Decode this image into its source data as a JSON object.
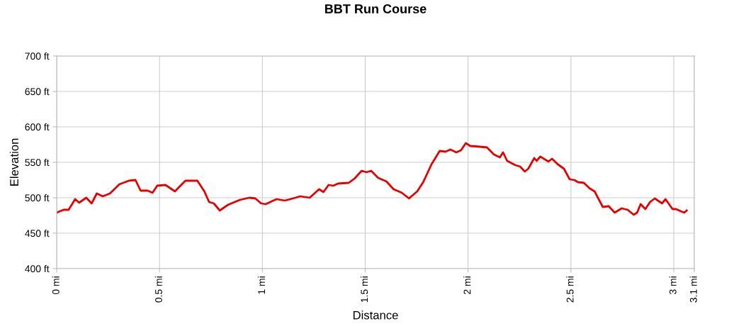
{
  "chart_data": {
    "type": "line",
    "title": "BBT Run Course",
    "xlabel": "Distance",
    "ylabel": "Elevation",
    "xlim": [
      0,
      3.1
    ],
    "ylim": [
      400,
      700
    ],
    "xticks": [
      {
        "value": 0,
        "label": "0 mi"
      },
      {
        "value": 0.5,
        "label": "0.5 mi"
      },
      {
        "value": 1,
        "label": "1 mi"
      },
      {
        "value": 1.5,
        "label": "1.5 mi"
      },
      {
        "value": 2,
        "label": "2 mi"
      },
      {
        "value": 2.5,
        "label": "2.5 mi"
      },
      {
        "value": 3,
        "label": "3 mi"
      },
      {
        "value": 3.1,
        "label": "3.1 mi"
      }
    ],
    "yticks": [
      {
        "value": 400,
        "label": "400 ft"
      },
      {
        "value": 450,
        "label": "450 ft"
      },
      {
        "value": 500,
        "label": "500 ft"
      },
      {
        "value": 550,
        "label": "550 ft"
      },
      {
        "value": 600,
        "label": "600 ft"
      },
      {
        "value": 650,
        "label": "650 ft"
      },
      {
        "value": 700,
        "label": "700 ft"
      }
    ],
    "grid": true,
    "legend": false,
    "marker": "none",
    "line_style": "solid",
    "series": [
      {
        "color": "#e60000",
        "x": [
          0,
          0.034,
          0.058,
          0.09,
          0.109,
          0.144,
          0.17,
          0.195,
          0.224,
          0.259,
          0.305,
          0.351,
          0.383,
          0.408,
          0.442,
          0.466,
          0.489,
          0.529,
          0.575,
          0.626,
          0.684,
          0.718,
          0.741,
          0.764,
          0.793,
          0.833,
          0.891,
          0.937,
          0.966,
          0.994,
          1.017,
          1.046,
          1.069,
          1.109,
          1.149,
          1.184,
          1.23,
          1.276,
          1.297,
          1.322,
          1.345,
          1.368,
          1.42,
          1.448,
          1.483,
          1.506,
          1.529,
          1.563,
          1.603,
          1.638,
          1.678,
          1.713,
          1.753,
          1.782,
          1.822,
          1.862,
          1.891,
          1.914,
          1.943,
          1.966,
          1.989,
          2.011,
          2.057,
          2.092,
          2.126,
          2.155,
          2.17,
          2.19,
          2.23,
          2.253,
          2.276,
          2.293,
          2.322,
          2.333,
          2.351,
          2.391,
          2.408,
          2.437,
          2.466,
          2.494,
          2.517,
          2.534,
          2.563,
          2.592,
          2.615,
          2.655,
          2.684,
          2.713,
          2.747,
          2.776,
          2.805,
          2.822,
          2.839,
          2.862,
          2.885,
          2.908,
          2.943,
          2.96,
          2.994,
          3.011,
          3.034,
          3.051,
          3.063
        ],
        "values": [
          479,
          483,
          483,
          498,
          493,
          500,
          492,
          506,
          502,
          506,
          519,
          524,
          525,
          510,
          510,
          507,
          517,
          518,
          509,
          524,
          524,
          509,
          494,
          492,
          482,
          490,
          497,
          500,
          499,
          492,
          491,
          495,
          498,
          496,
          499,
          502,
          500,
          512,
          508,
          518,
          517,
          520,
          521,
          527,
          538,
          536,
          538,
          528,
          523,
          512,
          507,
          499,
          509,
          522,
          547,
          566,
          565,
          568,
          564,
          567,
          577,
          573,
          572,
          571,
          561,
          557,
          564,
          552,
          546,
          544,
          537,
          541,
          556,
          552,
          558,
          551,
          555,
          547,
          541,
          526,
          525,
          522,
          521,
          513,
          509,
          487,
          488,
          479,
          485,
          483,
          476,
          479,
          491,
          484,
          494,
          499,
          492,
          498,
          484,
          484,
          481,
          479,
          482
        ]
      }
    ]
  }
}
